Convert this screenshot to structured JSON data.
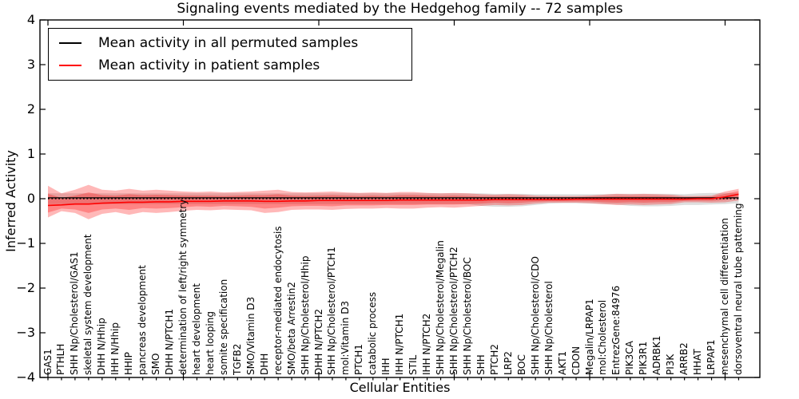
{
  "title": "Signaling events mediated by the Hedgehog family -- 72 samples",
  "axes": {
    "xlabel": "Cellular Entities",
    "ylabel": "Inferred Activity",
    "ytick_labels": [
      "−4",
      "−3",
      "−2",
      "−1",
      "0",
      "1",
      "2",
      "3",
      "4"
    ],
    "yticks": [
      -4,
      -3,
      -2,
      -1,
      0,
      1,
      2,
      3,
      4
    ],
    "x_major_tick_indices": [
      0,
      10,
      20,
      30,
      40,
      50
    ]
  },
  "legend": {
    "items": [
      {
        "label": "Mean activity in all permuted samples",
        "color": "#000000"
      },
      {
        "label": "Mean activity in patient samples",
        "color": "#ff0000"
      }
    ]
  },
  "colors": {
    "background": "#ffffff",
    "frame": "#000000",
    "permuted_line": "#000000",
    "patient_line": "#ff0000",
    "patient_band": "#ff0000",
    "permuted_band": "#000000",
    "text": "#000000"
  },
  "chart_data": {
    "type": "line",
    "title": "Signaling events mediated by the Hedgehog family -- 72 samples",
    "xlabel": "Cellular Entities",
    "ylabel": "Inferred Activity",
    "ylim": [
      -4,
      4
    ],
    "yticks": [
      -4,
      -3,
      -2,
      -1,
      0,
      1,
      2,
      3,
      4
    ],
    "grid": false,
    "legend_position": "upper left",
    "categories": [
      "GAS1",
      "PTHLH",
      "SHH Np/Cholesterol/GAS1",
      "skeletal system development",
      "DHH N/Hhip",
      "IHH N/Hhip",
      "HHIP",
      "pancreas development",
      "SMO",
      "DHH N/PTCH1",
      "determination of left/right symmetry",
      "heart development",
      "heart looping",
      "somite specification",
      "TGFB2",
      "SMO/Vitamin D3",
      "DHH",
      "receptor-mediated endocytosis",
      "SMO/beta Arrestin2",
      "SHH Np/Cholesterol/Hhip",
      "DHH N/PTCH2",
      "SHH Np/Cholesterol/PTCH1",
      "mol:Vitamin D3",
      "PTCH1",
      "catabolic process",
      "IHH",
      "IHH N/PTCH1",
      "STIL",
      "IHH N/PTCH2",
      "SHH Np/Cholesterol/Megalin",
      "SHH Np/Cholesterol/PTCH2",
      "SHH Np/Cholesterol/BOC",
      "SHH",
      "PTCH2",
      "LRP2",
      "BOC",
      "SHH Np/Cholesterol/CDO",
      "SHH Np/Cholesterol",
      "AKT1",
      "CDON",
      "Megalin/LRPAP1",
      "mol:Cholesterol",
      "EntrezGene:84976",
      "PIK3CA",
      "PIK3R1",
      "ADRBK1",
      "PI3K",
      "ARRB2",
      "HHAT",
      "LRPAP1",
      "mesenchymal cell differentiation",
      "dorsoventral neural tube patterning"
    ],
    "series": [
      {
        "name": "Mean activity in all permuted samples",
        "color": "#000000",
        "line_style": "solid",
        "values": [
          0.02,
          0.02,
          0.02,
          0.02,
          0.02,
          0.02,
          0.02,
          0.02,
          0.02,
          0.02,
          0.02,
          0.02,
          0.02,
          0.02,
          0.02,
          0.02,
          0.02,
          0.02,
          0.02,
          0.02,
          0.02,
          0.02,
          0.02,
          0.02,
          0.02,
          0.02,
          0.02,
          0.02,
          0.02,
          0.02,
          0.02,
          0.02,
          0.02,
          0.02,
          0.02,
          0.02,
          0.02,
          0.02,
          0.02,
          0.02,
          0.02,
          0.02,
          0.02,
          0.02,
          0.02,
          0.02,
          0.02,
          0.02,
          0.02,
          0.02,
          0.02,
          0.02
        ]
      },
      {
        "name": "Mean activity in patient samples",
        "color": "#ff0000",
        "line_style": "solid",
        "values": [
          -0.15,
          -0.14,
          -0.12,
          -0.12,
          -0.1,
          -0.09,
          -0.08,
          -0.08,
          -0.07,
          -0.07,
          -0.06,
          -0.06,
          -0.06,
          -0.05,
          -0.05,
          -0.05,
          -0.06,
          -0.06,
          -0.05,
          -0.05,
          -0.04,
          -0.04,
          -0.04,
          -0.04,
          -0.04,
          -0.04,
          -0.03,
          -0.03,
          -0.03,
          -0.03,
          -0.03,
          -0.03,
          -0.03,
          -0.02,
          -0.02,
          -0.02,
          -0.02,
          -0.02,
          -0.02,
          -0.01,
          -0.01,
          -0.01,
          -0.01,
          -0.01,
          -0.01,
          -0.01,
          -0.01,
          -0.01,
          0.0,
          0.0,
          0.04,
          0.1
        ]
      },
      {
        "name": "zero reference",
        "color": "#000000",
        "line_style": "dotted",
        "values": [
          0,
          0,
          0,
          0,
          0,
          0,
          0,
          0,
          0,
          0,
          0,
          0,
          0,
          0,
          0,
          0,
          0,
          0,
          0,
          0,
          0,
          0,
          0,
          0,
          0,
          0,
          0,
          0,
          0,
          0,
          0,
          0,
          0,
          0,
          0,
          0,
          0,
          0,
          0,
          0,
          0,
          0,
          0,
          0,
          0,
          0,
          0,
          0,
          0,
          0,
          0,
          0
        ]
      }
    ],
    "bands": [
      {
        "name": "permuted samples range",
        "color": "#000000",
        "opacity": 0.13,
        "hi": [
          0.12,
          0.12,
          0.12,
          0.12,
          0.12,
          0.12,
          0.12,
          0.12,
          0.12,
          0.12,
          0.12,
          0.12,
          0.12,
          0.12,
          0.12,
          0.12,
          0.12,
          0.12,
          0.12,
          0.12,
          0.12,
          0.12,
          0.12,
          0.12,
          0.12,
          0.12,
          0.12,
          0.12,
          0.12,
          0.12,
          0.12,
          0.12,
          0.12,
          0.11,
          0.11,
          0.11,
          0.1,
          0.1,
          0.1,
          0.1,
          0.1,
          0.1,
          0.11,
          0.11,
          0.11,
          0.11,
          0.11,
          0.1,
          0.12,
          0.13,
          0.13,
          0.12
        ],
        "lo": [
          -0.12,
          -0.12,
          -0.12,
          -0.12,
          -0.12,
          -0.12,
          -0.12,
          -0.12,
          -0.12,
          -0.12,
          -0.12,
          -0.12,
          -0.12,
          -0.12,
          -0.12,
          -0.12,
          -0.12,
          -0.12,
          -0.12,
          -0.12,
          -0.12,
          -0.12,
          -0.12,
          -0.12,
          -0.12,
          -0.12,
          -0.12,
          -0.12,
          -0.12,
          -0.12,
          -0.12,
          -0.12,
          -0.16,
          -0.18,
          -0.18,
          -0.17,
          -0.14,
          -0.11,
          -0.1,
          -0.1,
          -0.11,
          -0.12,
          -0.13,
          -0.16,
          -0.17,
          -0.17,
          -0.16,
          -0.14,
          -0.14,
          -0.13,
          -0.12,
          -0.1
        ]
      },
      {
        "name": "patient samples outer range",
        "color": "#ff0000",
        "opacity": 0.28,
        "hi": [
          0.29,
          0.12,
          0.2,
          0.31,
          0.2,
          0.18,
          0.22,
          0.18,
          0.2,
          0.18,
          0.16,
          0.15,
          0.16,
          0.14,
          0.15,
          0.16,
          0.18,
          0.2,
          0.15,
          0.14,
          0.15,
          0.16,
          0.14,
          0.13,
          0.14,
          0.13,
          0.15,
          0.15,
          0.13,
          0.12,
          0.13,
          0.12,
          0.1,
          0.09,
          0.1,
          0.09,
          0.07,
          0.06,
          0.06,
          0.06,
          0.07,
          0.09,
          0.11,
          0.1,
          0.11,
          0.1,
          0.09,
          0.06,
          0.06,
          0.07,
          0.16,
          0.22
        ],
        "lo": [
          -0.42,
          -0.28,
          -0.32,
          -0.46,
          -0.34,
          -0.3,
          -0.36,
          -0.3,
          -0.32,
          -0.3,
          -0.27,
          -0.25,
          -0.26,
          -0.24,
          -0.25,
          -0.26,
          -0.32,
          -0.3,
          -0.25,
          -0.24,
          -0.24,
          -0.25,
          -0.23,
          -0.22,
          -0.22,
          -0.21,
          -0.22,
          -0.22,
          -0.2,
          -0.19,
          -0.2,
          -0.18,
          -0.16,
          -0.14,
          -0.15,
          -0.14,
          -0.11,
          -0.09,
          -0.09,
          -0.09,
          -0.1,
          -0.12,
          -0.14,
          -0.13,
          -0.14,
          -0.13,
          -0.12,
          -0.08,
          -0.08,
          -0.09,
          -0.08,
          -0.04
        ]
      },
      {
        "name": "patient samples inner range",
        "color": "#ff0000",
        "opacity": 0.28,
        "hi": [
          0.11,
          0.02,
          0.07,
          0.14,
          0.08,
          0.07,
          0.1,
          0.08,
          0.09,
          0.08,
          0.07,
          0.07,
          0.07,
          0.06,
          0.07,
          0.08,
          0.08,
          0.1,
          0.07,
          0.06,
          0.07,
          0.08,
          0.07,
          0.06,
          0.07,
          0.06,
          0.08,
          0.08,
          0.07,
          0.06,
          0.07,
          0.06,
          0.05,
          0.05,
          0.05,
          0.05,
          0.03,
          0.03,
          0.03,
          0.03,
          0.04,
          0.05,
          0.06,
          0.06,
          0.06,
          0.06,
          0.05,
          0.03,
          0.04,
          0.04,
          0.11,
          0.17
        ],
        "lo": [
          -0.31,
          -0.22,
          -0.24,
          -0.32,
          -0.24,
          -0.22,
          -0.25,
          -0.21,
          -0.22,
          -0.21,
          -0.19,
          -0.17,
          -0.18,
          -0.16,
          -0.17,
          -0.18,
          -0.22,
          -0.2,
          -0.17,
          -0.16,
          -0.16,
          -0.17,
          -0.15,
          -0.15,
          -0.15,
          -0.14,
          -0.14,
          -0.14,
          -0.13,
          -0.13,
          -0.13,
          -0.12,
          -0.11,
          -0.09,
          -0.1,
          -0.09,
          -0.07,
          -0.06,
          -0.06,
          -0.06,
          -0.06,
          -0.08,
          -0.09,
          -0.08,
          -0.09,
          -0.08,
          -0.08,
          -0.05,
          -0.05,
          -0.05,
          -0.03,
          0.02
        ]
      }
    ]
  }
}
